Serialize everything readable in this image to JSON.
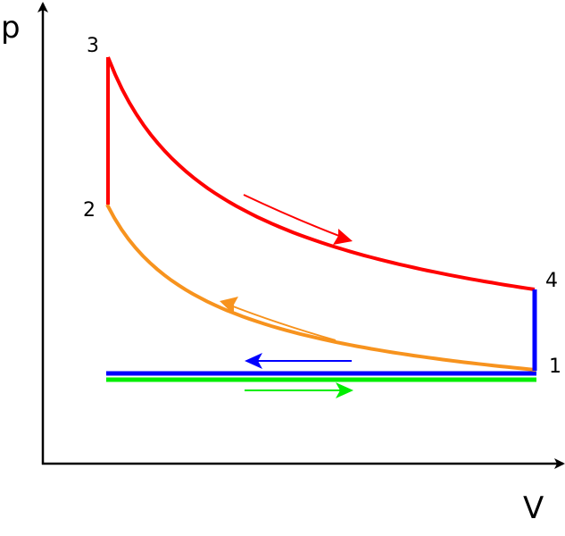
{
  "axes": {
    "y_label": "p",
    "x_label": "V"
  },
  "points": {
    "p1": "1",
    "p2": "2",
    "p3": "3",
    "p4": "4"
  },
  "colors": {
    "expansion": "#ff0000",
    "compression": "#f7931e",
    "exhaust_isochoric": "#0000ff",
    "intake": "#00ee00",
    "axis": "#000000"
  }
}
